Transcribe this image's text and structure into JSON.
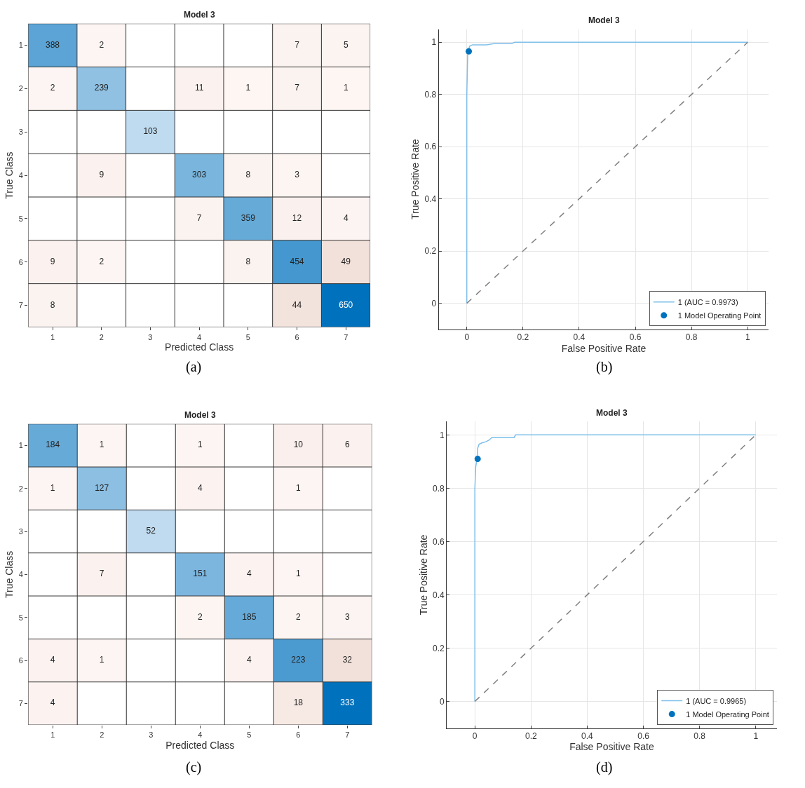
{
  "chart_data": [
    {
      "type": "heatmap",
      "title": "Model 3",
      "xlabel": "Predicted Class",
      "ylabel": "True Class",
      "data_labels": true,
      "annotations": [
        "(a)"
      ],
      "categories": [
        "1",
        "2",
        "3",
        "4",
        "5",
        "6",
        "7"
      ],
      "y_categories": [
        "1",
        "2",
        "3",
        "4",
        "5",
        "6",
        "7"
      ],
      "cells": [
        [
          388,
          2,
          null,
          null,
          null,
          7,
          5
        ],
        [
          2,
          239,
          null,
          11,
          1,
          7,
          1
        ],
        [
          null,
          null,
          103,
          null,
          null,
          null,
          null
        ],
        [
          null,
          9,
          null,
          303,
          8,
          3,
          null
        ],
        [
          null,
          null,
          null,
          7,
          359,
          12,
          4
        ],
        [
          9,
          2,
          null,
          null,
          8,
          454,
          49
        ],
        [
          8,
          null,
          null,
          null,
          null,
          44,
          650
        ]
      ]
    },
    {
      "type": "line",
      "title": "Model 3",
      "xlabel": "False Positive Rate",
      "ylabel": "True Positive Rate",
      "annotations": [
        "(b)"
      ],
      "xlim": [
        -0.1,
        1.075
      ],
      "ylim": [
        -0.1,
        1.05
      ],
      "xticks": [
        0,
        0.2,
        0.4,
        0.6,
        0.8,
        1
      ],
      "yticks": [
        0,
        0.2,
        0.4,
        0.6,
        0.8,
        1
      ],
      "grid": true,
      "legend": "bottom right",
      "series": [
        {
          "name": "1 (AUC = 0.9973)",
          "type": "line",
          "color": "#7fbfea",
          "x": [
            0,
            0,
            0.003,
            0.005,
            0.01,
            0.02,
            0.07,
            0.1,
            0.16,
            0.17,
            1
          ],
          "values": [
            0,
            0.8,
            0.95,
            0.965,
            0.985,
            0.99,
            0.99,
            0.995,
            0.995,
            1,
            1
          ]
        },
        {
          "name": "1 Model Operating Point",
          "type": "scatter",
          "marker": "circle",
          "color": "#0072bd",
          "x": [
            0.007
          ],
          "values": [
            0.965
          ]
        },
        {
          "type": "line",
          "line_style": "dashed",
          "color": "#808080",
          "x": [
            0,
            1
          ],
          "values": [
            0,
            1
          ]
        }
      ]
    },
    {
      "type": "heatmap",
      "title": "Model 3",
      "xlabel": "Predicted Class",
      "ylabel": "True Class",
      "data_labels": true,
      "annotations": [
        "(c)"
      ],
      "categories": [
        "1",
        "2",
        "3",
        "4",
        "5",
        "6",
        "7"
      ],
      "y_categories": [
        "1",
        "2",
        "3",
        "4",
        "5",
        "6",
        "7"
      ],
      "cells": [
        [
          184,
          1,
          null,
          1,
          null,
          10,
          6
        ],
        [
          1,
          127,
          null,
          4,
          null,
          1,
          null
        ],
        [
          null,
          null,
          52,
          null,
          null,
          null,
          null
        ],
        [
          null,
          7,
          null,
          151,
          4,
          1,
          null
        ],
        [
          null,
          null,
          null,
          2,
          185,
          2,
          3
        ],
        [
          4,
          1,
          null,
          null,
          4,
          223,
          32
        ],
        [
          4,
          null,
          null,
          null,
          null,
          18,
          333
        ]
      ]
    },
    {
      "type": "line",
      "title": "Model 3",
      "xlabel": "False Positive Rate",
      "ylabel": "True Positive Rate",
      "annotations": [
        "(d)"
      ],
      "xlim": [
        -0.1,
        1.075
      ],
      "ylim": [
        -0.1,
        1.05
      ],
      "xticks": [
        0,
        0.2,
        0.4,
        0.6,
        0.8,
        1
      ],
      "yticks": [
        0,
        0.2,
        0.4,
        0.6,
        0.8,
        1
      ],
      "grid": true,
      "legend": "bottom right",
      "series": [
        {
          "name": "1 (AUC = 0.9965)",
          "type": "line",
          "color": "#7fbfea",
          "x": [
            0,
            0,
            0.003,
            0.008,
            0.01,
            0.015,
            0.025,
            0.04,
            0.05,
            0.06,
            0.14,
            0.145,
            1
          ],
          "values": [
            0,
            0.8,
            0.88,
            0.91,
            0.95,
            0.965,
            0.97,
            0.975,
            0.98,
            0.99,
            0.99,
            1,
            1
          ]
        },
        {
          "name": "1 Model Operating Point",
          "type": "scatter",
          "marker": "circle",
          "color": "#0072bd",
          "x": [
            0.01
          ],
          "values": [
            0.91
          ]
        },
        {
          "type": "line",
          "line_style": "dashed",
          "color": "#808080",
          "x": [
            0,
            1
          ],
          "values": [
            0,
            1
          ]
        }
      ]
    }
  ]
}
